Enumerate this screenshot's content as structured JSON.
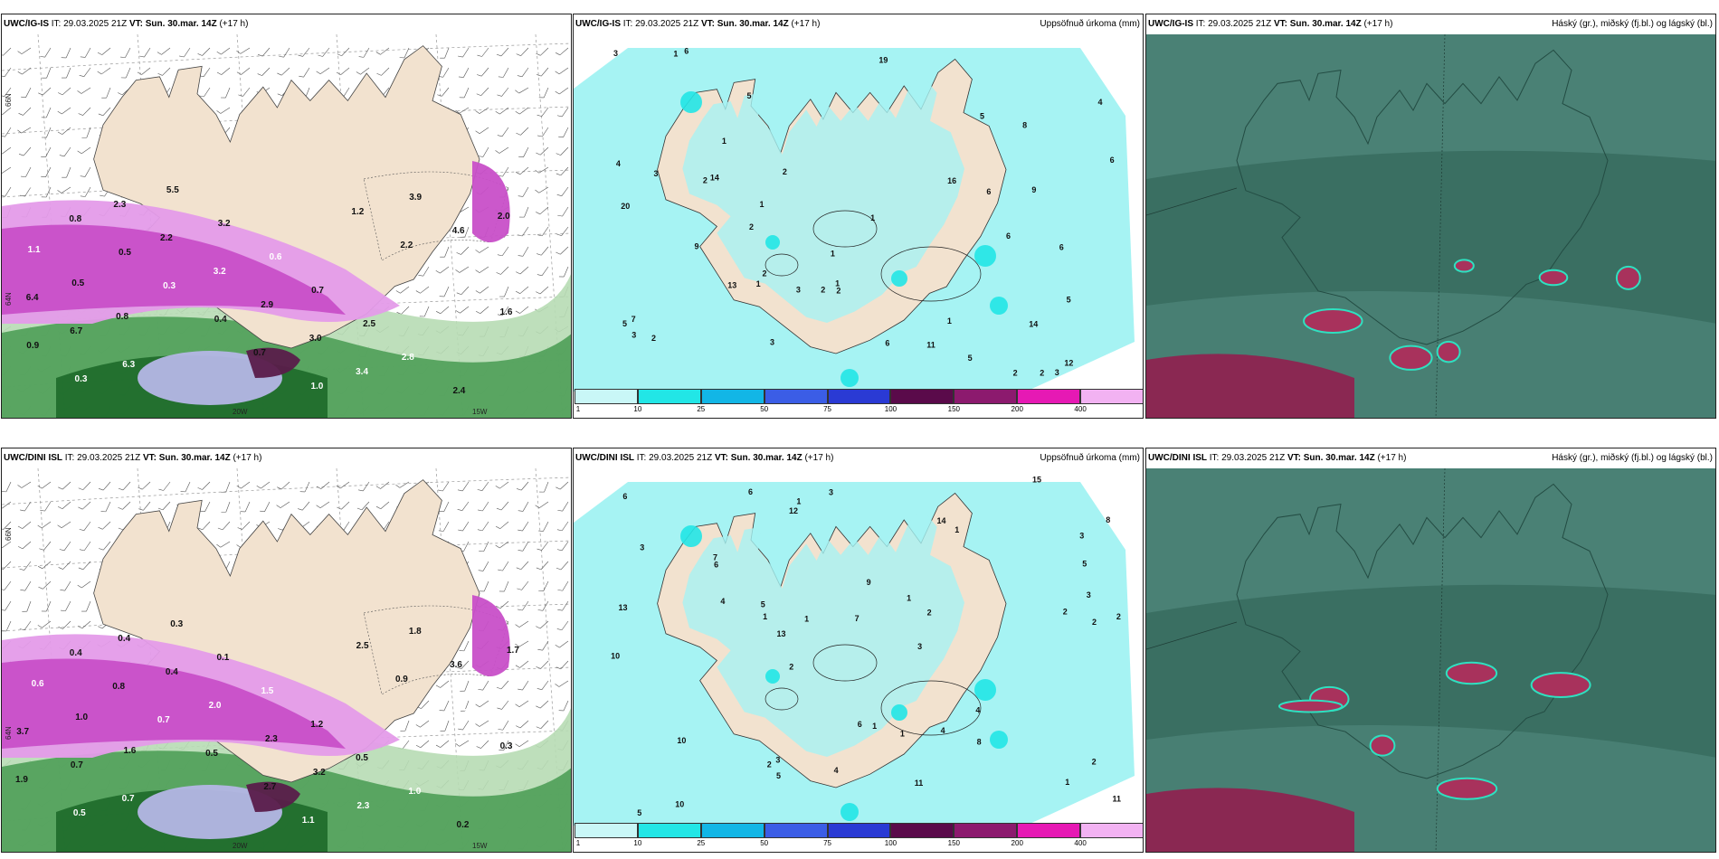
{
  "colors": {
    "land": "#f2e2cf",
    "precip_light": "#a6f3f3",
    "precip_cyan": "#22e6e6",
    "magenta": "#c84fc8",
    "magenta_light": "#e49be9",
    "dark_purple": "#5a1c4a",
    "green_dark": "#1d6a2a",
    "green_mid": "#4e9e58",
    "green_light": "#b7dcb4",
    "lavender": "#b5b6e6",
    "cloud_dark": "#3a6f62",
    "cloud_mid": "#4c8378",
    "cloud_red": "#a8325c"
  },
  "panels": [
    {
      "id": "ig-is-wind",
      "model": "UWC/IG-IS",
      "it_label": "IT:",
      "it_value": "29.03.2025 21Z",
      "vt_label": "VT:",
      "vt_value": "Sun. 30.mar. 14Z",
      "offset": "(+17 h)",
      "right_title": "",
      "lat_labels": [
        "66N",
        "64N"
      ],
      "lon_labels": [
        "20W",
        "15W"
      ],
      "values": [
        {
          "t": "0.6"
        },
        {
          "t": "0.8"
        },
        {
          "t": "0.5"
        },
        {
          "t": "0.3"
        },
        {
          "t": "0.4"
        },
        {
          "t": "0.7"
        },
        {
          "t": "1.0"
        },
        {
          "t": "1.2"
        },
        {
          "t": "2.2"
        },
        {
          "t": "2.5"
        },
        {
          "t": "1.6"
        },
        {
          "t": "0.9"
        },
        {
          "t": "0.3"
        },
        {
          "t": "2.3"
        },
        {
          "t": "2.2"
        },
        {
          "t": "3.2"
        },
        {
          "t": "2.9"
        },
        {
          "t": "3.0"
        },
        {
          "t": "3.4"
        },
        {
          "t": "3.9"
        },
        {
          "t": "4.6"
        },
        {
          "t": "5.5"
        },
        {
          "t": "6.4"
        },
        {
          "t": "6.7"
        },
        {
          "t": "6.3"
        },
        {
          "t": "5.5"
        },
        {
          "t": "3.2"
        },
        {
          "t": "0.6"
        },
        {
          "t": "0.7"
        },
        {
          "t": "2.5"
        },
        {
          "t": "2.8"
        },
        {
          "t": "2.4"
        },
        {
          "t": "2.0"
        },
        {
          "t": "1.1"
        },
        {
          "t": "0.5"
        },
        {
          "t": "0.8"
        }
      ]
    },
    {
      "id": "ig-is-precip",
      "model": "UWC/IG-IS",
      "it_label": "IT:",
      "it_value": "29.03.2025 21Z",
      "vt_label": "VT:",
      "vt_value": "Sun. 30.mar. 14Z",
      "offset": "(+17 h)",
      "right_title": "Uppsöfnuð úrkoma (mm)",
      "colorbar_labels": [
        "1",
        "10",
        "25",
        "50",
        "75",
        "100",
        "150",
        "200",
        "400"
      ],
      "colorbar_colors": [
        "#c9f7f7",
        "#22e6e6",
        "#12b6e6",
        "#3b5de6",
        "#2a3ad4",
        "#5a0a4a",
        "#8c1a6e",
        "#e619b4",
        "#f2b2f2"
      ],
      "values": [
        {
          "t": "1"
        },
        {
          "t": "2"
        },
        {
          "t": "1"
        },
        {
          "t": "6"
        },
        {
          "t": "3"
        },
        {
          "t": "5"
        },
        {
          "t": "2"
        },
        {
          "t": "2"
        },
        {
          "t": "1"
        },
        {
          "t": "6"
        },
        {
          "t": "9"
        },
        {
          "t": "19"
        },
        {
          "t": "3"
        },
        {
          "t": "2"
        },
        {
          "t": "1"
        },
        {
          "t": "1"
        },
        {
          "t": "1"
        },
        {
          "t": "6"
        },
        {
          "t": "4"
        },
        {
          "t": "2"
        },
        {
          "t": "2"
        },
        {
          "t": "14"
        },
        {
          "t": "11"
        },
        {
          "t": "13"
        },
        {
          "t": "14"
        },
        {
          "t": "16"
        },
        {
          "t": "6"
        },
        {
          "t": "7"
        },
        {
          "t": "8"
        },
        {
          "t": "5"
        },
        {
          "t": "2"
        },
        {
          "t": "3"
        },
        {
          "t": "2"
        },
        {
          "t": "5"
        },
        {
          "t": "5"
        },
        {
          "t": "4"
        },
        {
          "t": "3"
        },
        {
          "t": "6"
        },
        {
          "t": "9"
        },
        {
          "t": "3"
        },
        {
          "t": "20"
        },
        {
          "t": "12"
        },
        {
          "t": "6"
        },
        {
          "t": "5"
        },
        {
          "t": "2"
        },
        {
          "t": "3"
        },
        {
          "t": "1"
        },
        {
          "t": "1"
        }
      ]
    },
    {
      "id": "ig-is-cloud",
      "model": "UWC/IG-IS",
      "it_label": "IT:",
      "it_value": "29.03.2025 21Z",
      "vt_label": "VT:",
      "vt_value": "Sun. 30.mar. 14Z",
      "offset": "(+17 h)",
      "right_title": "Háský (gr.), miðský (fj.bl.) og lágský (bl.)"
    },
    {
      "id": "dini-isl-wind",
      "model": "UWC/DINI ISL",
      "it_label": "IT:",
      "it_value": "29.03.2025 21Z",
      "vt_label": "VT:",
      "vt_value": "Sun. 30.mar. 14Z",
      "offset": "(+17 h)",
      "right_title": "",
      "lat_labels": [
        "66N",
        "64N"
      ],
      "lon_labels": [
        "20W",
        "15W"
      ],
      "values": [
        {
          "t": "0.5"
        },
        {
          "t": "0.4"
        },
        {
          "t": "0.8"
        },
        {
          "t": "0.7"
        },
        {
          "t": "0.5"
        },
        {
          "t": "2.7"
        },
        {
          "t": "1.1"
        },
        {
          "t": "2.5"
        },
        {
          "t": "0.9"
        },
        {
          "t": "0.3"
        },
        {
          "t": "0.3"
        },
        {
          "t": "1.9"
        },
        {
          "t": "0.5"
        },
        {
          "t": "0.4"
        },
        {
          "t": "0.4"
        },
        {
          "t": "2.0"
        },
        {
          "t": "2.3"
        },
        {
          "t": "3.2"
        },
        {
          "t": "2.3"
        },
        {
          "t": "1.8"
        },
        {
          "t": "3.6"
        },
        {
          "t": "2.7"
        },
        {
          "t": "3.7"
        },
        {
          "t": "0.7"
        },
        {
          "t": "0.7"
        },
        {
          "t": "0.3"
        },
        {
          "t": "0.1"
        },
        {
          "t": "1.5"
        },
        {
          "t": "1.2"
        },
        {
          "t": "0.5"
        },
        {
          "t": "1.0"
        },
        {
          "t": "0.2"
        },
        {
          "t": "1.7"
        },
        {
          "t": "0.6"
        },
        {
          "t": "1.0"
        },
        {
          "t": "1.6"
        }
      ]
    },
    {
      "id": "dini-isl-precip",
      "model": "UWC/DINI ISL",
      "it_label": "IT:",
      "it_value": "29.03.2025 21Z",
      "vt_label": "VT:",
      "vt_value": "Sun. 30.mar. 14Z",
      "offset": "(+17 h)",
      "right_title": "Uppsöfnuð úrkoma (mm)",
      "colorbar_labels": [
        "1",
        "10",
        "25",
        "50",
        "75",
        "100",
        "150",
        "200",
        "400"
      ],
      "colorbar_colors": [
        "#c9f7f7",
        "#22e6e6",
        "#12b6e6",
        "#3b5de6",
        "#2a3ad4",
        "#5a0a4a",
        "#8c1a6e",
        "#e619b4",
        "#f2b2f2"
      ],
      "values": [
        {
          "t": "5"
        },
        {
          "t": "2"
        },
        {
          "t": "6"
        },
        {
          "t": "4"
        },
        {
          "t": "4"
        },
        {
          "t": "2"
        },
        {
          "t": "3"
        },
        {
          "t": "7"
        },
        {
          "t": "1"
        },
        {
          "t": "1"
        },
        {
          "t": "1"
        },
        {
          "t": "2"
        },
        {
          "t": "1"
        },
        {
          "t": "3"
        },
        {
          "t": "1"
        },
        {
          "t": "2"
        },
        {
          "t": "3"
        },
        {
          "t": "4"
        },
        {
          "t": "2"
        },
        {
          "t": "10"
        },
        {
          "t": "6"
        },
        {
          "t": "5"
        },
        {
          "t": "1"
        },
        {
          "t": "3"
        },
        {
          "t": "8"
        },
        {
          "t": "11"
        },
        {
          "t": "15"
        },
        {
          "t": "10"
        },
        {
          "t": "14"
        },
        {
          "t": "11"
        },
        {
          "t": "6"
        },
        {
          "t": "5"
        },
        {
          "t": "7"
        },
        {
          "t": "9"
        },
        {
          "t": "10"
        },
        {
          "t": "3"
        },
        {
          "t": "13"
        },
        {
          "t": "13"
        },
        {
          "t": "12"
        },
        {
          "t": "6"
        },
        {
          "t": "8"
        },
        {
          "t": "3"
        },
        {
          "t": "2"
        },
        {
          "t": "1"
        },
        {
          "t": "5"
        },
        {
          "t": "4"
        },
        {
          "t": "2"
        },
        {
          "t": "1"
        }
      ]
    },
    {
      "id": "dini-isl-cloud",
      "model": "UWC/DINI ISL",
      "it_label": "IT:",
      "it_value": "29.03.2025 21Z",
      "vt_label": "VT:",
      "vt_value": "Sun. 30.mar. 14Z",
      "offset": "(+17 h)",
      "right_title": "Háský (gr.), miðský (fj.bl.) og lágský (bl.)"
    }
  ]
}
